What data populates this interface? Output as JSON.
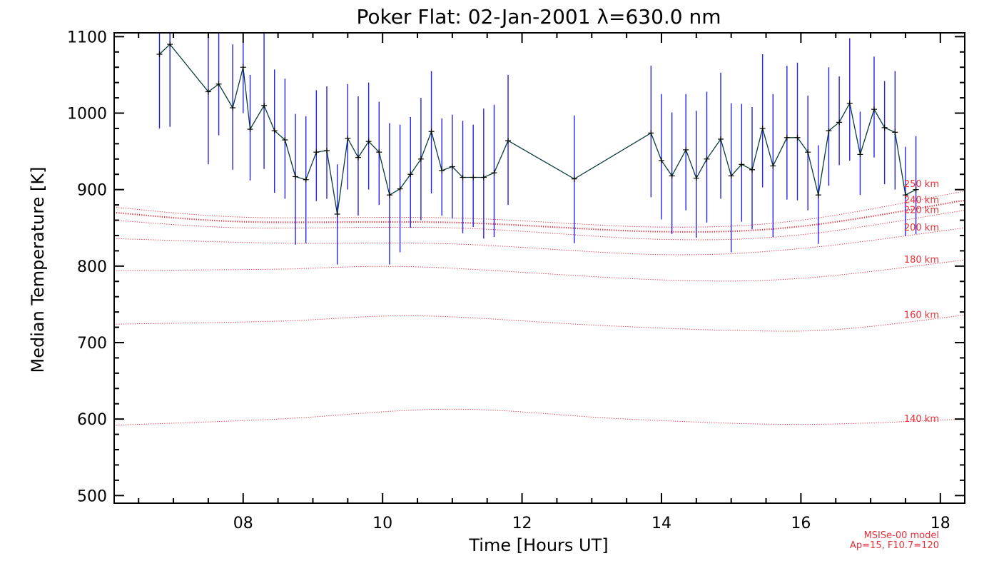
{
  "chart_data": {
    "type": "line",
    "title": "Poker Flat: 02-Jan-2001 λ=630.0 nm",
    "xlabel": "Time [Hours UT]",
    "ylabel": "Median Temperature [K]",
    "xlim": [
      6.15,
      18.35
    ],
    "ylim": [
      490,
      1105
    ],
    "xticks": [
      8,
      10,
      12,
      14,
      16,
      18
    ],
    "xtick_labels": [
      "08",
      "10",
      "12",
      "14",
      "16",
      "18"
    ],
    "yticks": [
      500,
      600,
      700,
      800,
      900,
      1000,
      1100
    ],
    "ytick_labels": [
      "500",
      "600",
      "700",
      "800",
      "900",
      "1000",
      "1100"
    ],
    "colors": {
      "measurement": "#0a3a3a",
      "error_bar": "#2222ee",
      "model": "#e8303a",
      "axis": "#000000"
    },
    "measurements": {
      "name": "Median temperature",
      "x": [
        6.8,
        6.95,
        7.5,
        7.65,
        7.85,
        8.0,
        8.1,
        8.3,
        8.45,
        8.6,
        8.75,
        8.9,
        9.05,
        9.2,
        9.35,
        9.5,
        9.65,
        9.8,
        9.95,
        10.1,
        10.25,
        10.4,
        10.55,
        10.7,
        10.85,
        11.0,
        11.15,
        11.3,
        11.45,
        11.6,
        11.8,
        12.75,
        13.85,
        14.0,
        14.15,
        14.35,
        14.5,
        14.65,
        14.85,
        15.0,
        15.15,
        15.3,
        15.45,
        15.6,
        15.8,
        15.95,
        16.1,
        16.25,
        16.4,
        16.55,
        16.7,
        16.85,
        17.05,
        17.2,
        17.35,
        17.5,
        17.65
      ],
      "y": [
        1077,
        1090,
        1028,
        1038,
        1007,
        1060,
        979,
        1010,
        977,
        965,
        917,
        913,
        949,
        951,
        868,
        967,
        942,
        963,
        949,
        893,
        901,
        920,
        940,
        976,
        925,
        930,
        916,
        916,
        916,
        922,
        964,
        914,
        974,
        938,
        918,
        952,
        915,
        940,
        966,
        918,
        933,
        926,
        980,
        931,
        968,
        968,
        949,
        893,
        977,
        988,
        1013,
        946,
        1005,
        981,
        975,
        893,
        900
      ],
      "err_low": [
        980,
        982,
        933,
        971,
        926,
        1000,
        912,
        927,
        896,
        888,
        828,
        830,
        885,
        888,
        802,
        900,
        866,
        900,
        880,
        802,
        818,
        850,
        860,
        895,
        866,
        862,
        843,
        851,
        836,
        838,
        880,
        830,
        890,
        861,
        842,
        873,
        837,
        857,
        888,
        818,
        858,
        848,
        903,
        838,
        887,
        886,
        873,
        829,
        905,
        932,
        938,
        893,
        942,
        907,
        900,
        839,
        842
      ],
      "err_high": [
        1105,
        1105,
        1105,
        1105,
        1090,
        1105,
        1050,
        1105,
        1057,
        1045,
        999,
        996,
        1030,
        1035,
        933,
        1038,
        1022,
        1040,
        1015,
        987,
        985,
        995,
        1020,
        1055,
        993,
        998,
        990,
        985,
        1006,
        1011,
        1050,
        997,
        1062,
        1025,
        1001,
        1025,
        1003,
        1028,
        1053,
        1013,
        1012,
        1008,
        1077,
        1025,
        1062,
        1066,
        1023,
        958,
        1060,
        1048,
        1098,
        1002,
        1074,
        1042,
        1055,
        956,
        970
      ]
    },
    "model_curves": [
      {
        "label": "140 km",
        "x": [
          6.15,
          8.5,
          11,
          13.5,
          16,
          18.35
        ],
        "y": [
          592,
          600,
          613,
          600,
          593,
          600
        ]
      },
      {
        "label": "160 km",
        "x": [
          6.15,
          8.5,
          10.5,
          13,
          15,
          16.5,
          18.35
        ],
        "y": [
          724,
          728,
          735,
          723,
          716,
          717,
          736
        ]
      },
      {
        "label": "180 km",
        "x": [
          6.15,
          8.5,
          10.5,
          14,
          16,
          18.35
        ],
        "y": [
          794,
          796,
          799,
          782,
          784,
          808
        ]
      },
      {
        "label": "200 km",
        "x": [
          6.15,
          8.5,
          11,
          14,
          16,
          18.35
        ],
        "y": [
          836,
          830,
          829,
          815,
          823,
          850
        ]
      },
      {
        "label": "220 km",
        "x": [
          6.15,
          8,
          11,
          14,
          16,
          18.35
        ],
        "y": [
          860,
          850,
          850,
          835,
          841,
          873
        ]
      },
      {
        "label": "240 km",
        "x": [
          6.15,
          8,
          11,
          14,
          16,
          18.35
        ],
        "y": [
          870,
          858,
          857,
          845,
          852,
          886
        ]
      },
      {
        "label": "250 km",
        "x": [
          6.15,
          8,
          11,
          14,
          16,
          18.35
        ],
        "y": [
          877,
          864,
          863,
          851,
          860,
          898
        ]
      }
    ],
    "annotation": {
      "line1": "MSISe-00 model",
      "line2": "Ap=15, F10.7=120"
    }
  }
}
